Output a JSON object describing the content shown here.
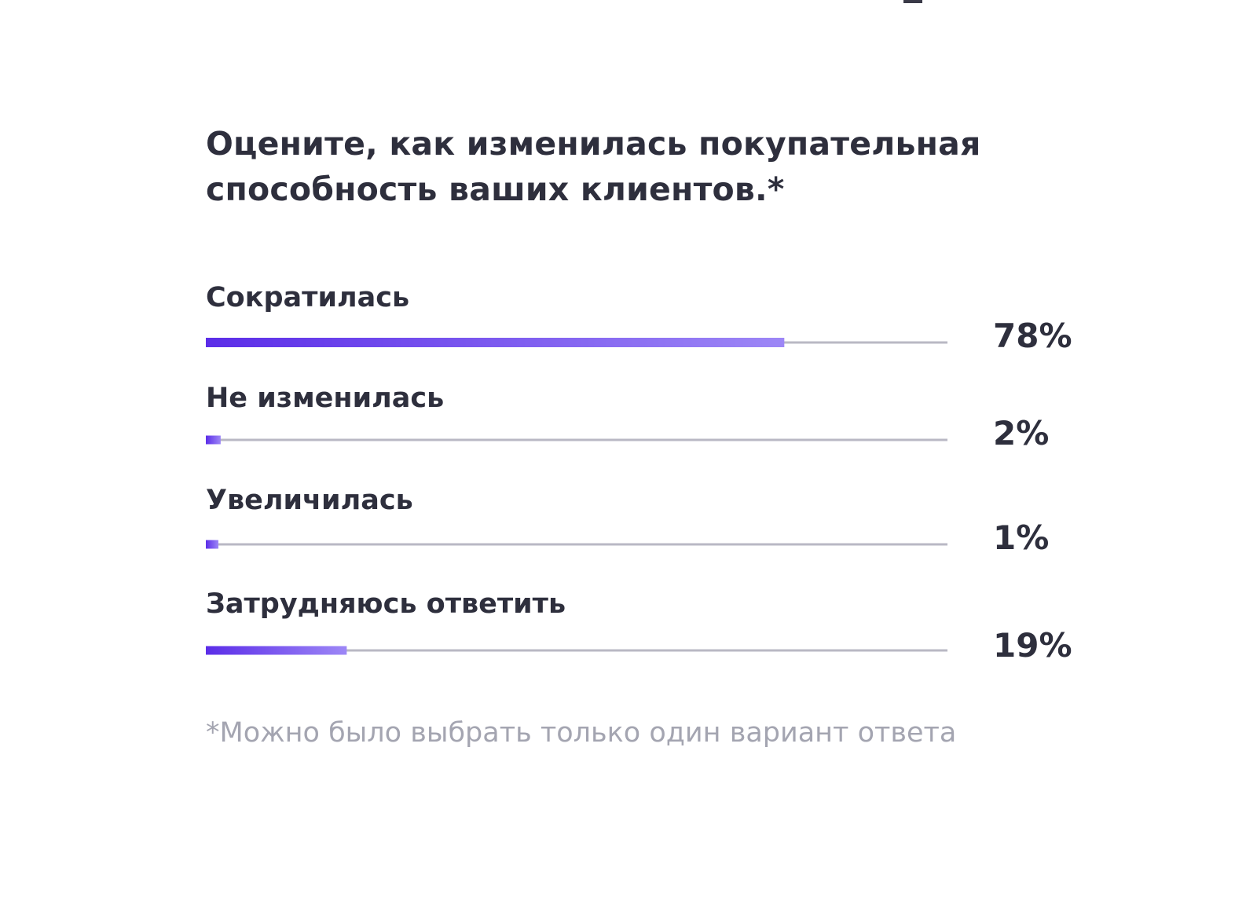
{
  "colors": {
    "bar_start": "#5b2de8",
    "bar_end": "#9d87f6",
    "track": "#b9b8c4",
    "text": "#2e2f3d",
    "footnote": "#a4a5b1"
  },
  "chart_data": {
    "type": "bar",
    "orientation": "horizontal",
    "title": "Оцените, как изменилась покупательная способность ваших клиентов.*",
    "categories": [
      "Сократилась",
      "Не изменилась",
      "Увеличилась",
      "Затрудняюсь ответить"
    ],
    "values": [
      78,
      2,
      1,
      19
    ],
    "value_labels": [
      "78%",
      "2%",
      "1%",
      "19%"
    ],
    "xlim": [
      0,
      100
    ],
    "unit": "%",
    "grid": false,
    "legend": "none"
  },
  "footnote": "*Можно было выбрать только один вариант ответа"
}
